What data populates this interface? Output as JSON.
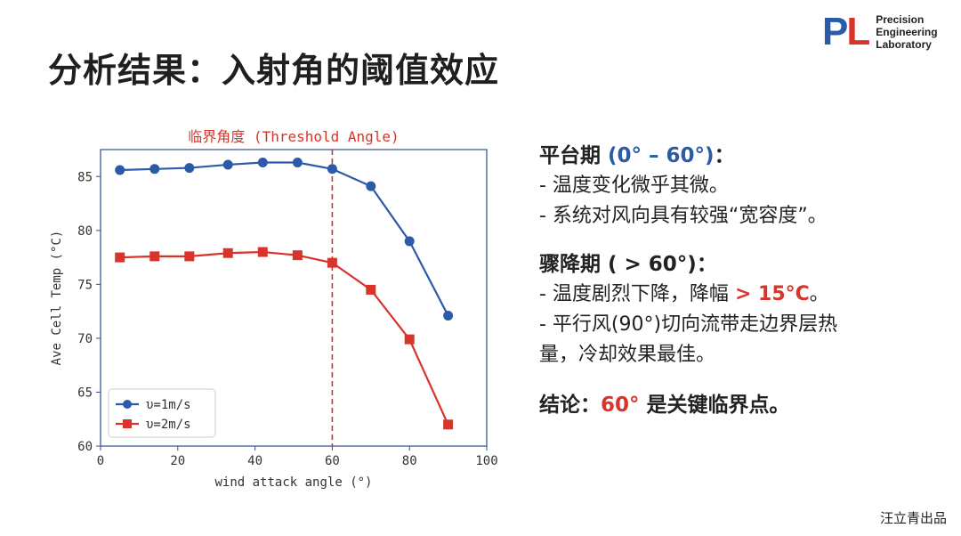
{
  "logo": {
    "mark_p": "P",
    "mark_l": "L",
    "line1": "Precision",
    "line2": "Engineering",
    "line3": "Laboratory",
    "color_p": "#2b5aa8",
    "color_l": "#d9342b"
  },
  "title": "分析结果：入射角的阈值效应",
  "chart_data": {
    "type": "line",
    "title": "临界角度 (Threshold Angle)",
    "xlabel": "wind attack angle (°)",
    "ylabel": "Ave Cell Temp (°C)",
    "xlim": [
      0,
      100
    ],
    "ylim": [
      60,
      87.5
    ],
    "xticks": [
      0,
      20,
      40,
      60,
      80,
      100
    ],
    "yticks": [
      60,
      65,
      70,
      75,
      80,
      85
    ],
    "threshold_x": 60,
    "grid": false,
    "legend_position": "lower-left",
    "x": [
      5,
      14,
      23,
      33,
      42,
      51,
      60,
      70,
      80,
      90
    ],
    "series": [
      {
        "name": "υ=1m/s",
        "marker": "circle",
        "color": "#2b5aa8",
        "values": [
          85.6,
          85.7,
          85.8,
          86.1,
          86.3,
          86.3,
          85.7,
          84.1,
          79.0,
          72.1
        ]
      },
      {
        "name": "υ=2m/s",
        "marker": "square",
        "color": "#d9342b",
        "values": [
          77.5,
          77.6,
          77.6,
          77.9,
          78.0,
          77.7,
          77.0,
          74.5,
          69.9,
          62.0
        ]
      }
    ]
  },
  "panel": {
    "s1_head_prefix": "平台期 ",
    "s1_head_range": "(0° – 60°)",
    "s1_head_suffix": "：",
    "s1_line1": "- 温度变化微乎其微。",
    "s1_line2": "- 系统对风向具有较强“宽容度”。",
    "s2_head": "骤降期 ( > 60°)：",
    "s2_line1_prefix": "- 温度剧烈下降，降幅 ",
    "s2_line1_value": "> 15°C",
    "s2_line1_suffix": "。",
    "s2_line2": "- 平行风(90°)切向流带走边界层热",
    "s2_line3": "量，冷却效果最佳。",
    "s3_prefix": "结论：",
    "s3_value": "60°",
    "s3_suffix": " 是关键临界点。"
  },
  "footer": "汪立青出品"
}
